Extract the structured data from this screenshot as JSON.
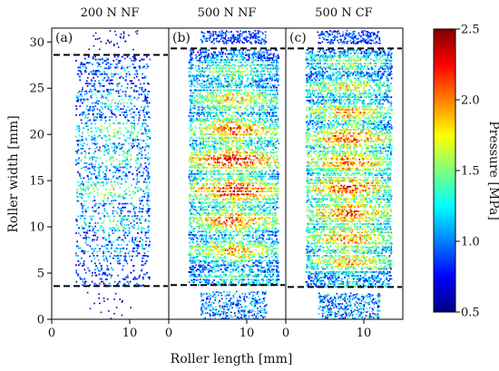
{
  "chart_data": {
    "type": "heatmap",
    "panels": [
      {
        "id": "a",
        "title": "200 N NF",
        "label": "(a)",
        "boundaries_mm": [
          28.6,
          3.6
        ],
        "intensity_profile": [
          0.15,
          0.2,
          0.25,
          0.35,
          0.45,
          0.5,
          0.4,
          0.55,
          0.6,
          0.5,
          0.45,
          0.55,
          0.6,
          0.55,
          0.45,
          0.4,
          0.35,
          0.3,
          0.25,
          0.2
        ],
        "x_range_mm": [
          3.0,
          12.5
        ],
        "outer_dots": [
          0.05,
          0.03
        ]
      },
      {
        "id": "b",
        "title": "500 N NF",
        "label": "(b)",
        "boundaries_mm": [
          29.3,
          3.7
        ],
        "intensity_profile": [
          0.35,
          0.55,
          0.65,
          0.75,
          0.7,
          0.85,
          0.8,
          0.95,
          0.9,
          0.85,
          0.95,
          0.9,
          0.85,
          0.8,
          0.75,
          0.7,
          0.65,
          0.6,
          0.5,
          0.4
        ],
        "x_range_mm": [
          2.5,
          14.0
        ],
        "outer_dots": [
          0.35,
          0.55
        ]
      },
      {
        "id": "c",
        "title": "500 N CF",
        "label": "(c)",
        "boundaries_mm": [
          29.3,
          3.5
        ],
        "intensity_profile": [
          0.4,
          0.6,
          0.7,
          0.9,
          0.75,
          0.95,
          0.8,
          1.0,
          0.85,
          0.95,
          0.8,
          0.95,
          0.85,
          0.8,
          0.75,
          0.7,
          0.65,
          0.6,
          0.55,
          0.45
        ],
        "x_range_mm": [
          2.5,
          13.5
        ],
        "outer_dots": [
          0.35,
          0.6
        ]
      }
    ],
    "xlabel": "Roller length [mm]",
    "ylabel": "Roller width [mm]",
    "x_ticks": [
      0,
      10
    ],
    "y_ticks": [
      0,
      5,
      10,
      15,
      20,
      25,
      30
    ],
    "xlim": [
      0,
      15
    ],
    "ylim": [
      0,
      31.5
    ],
    "colorbar": {
      "label": "Pressure [MPa]",
      "ticks": [
        0.5,
        1.0,
        1.5,
        2.0,
        2.5
      ],
      "range": [
        0.5,
        2.5
      ],
      "colormap": "jet"
    }
  },
  "titles": {
    "a": "200 N NF",
    "b": "500 N NF",
    "c": "500 N CF"
  },
  "labels": {
    "a": "(a)",
    "b": "(b)",
    "c": "(c)"
  },
  "axes": {
    "xlabel": "Roller length [mm]",
    "ylabel": "Roller width [mm]",
    "colorbar_label": "Pressure [MPa]",
    "y_ticks": [
      "0",
      "5",
      "10",
      "15",
      "20",
      "25",
      "30"
    ],
    "x_ticks_a": [
      "0",
      "10"
    ],
    "x_ticks_b": [
      "0",
      "10"
    ],
    "x_ticks_c": [
      "0",
      "10"
    ],
    "cbar_ticks": [
      "0.5",
      "1.0",
      "1.5",
      "2.0",
      "2.5"
    ]
  }
}
